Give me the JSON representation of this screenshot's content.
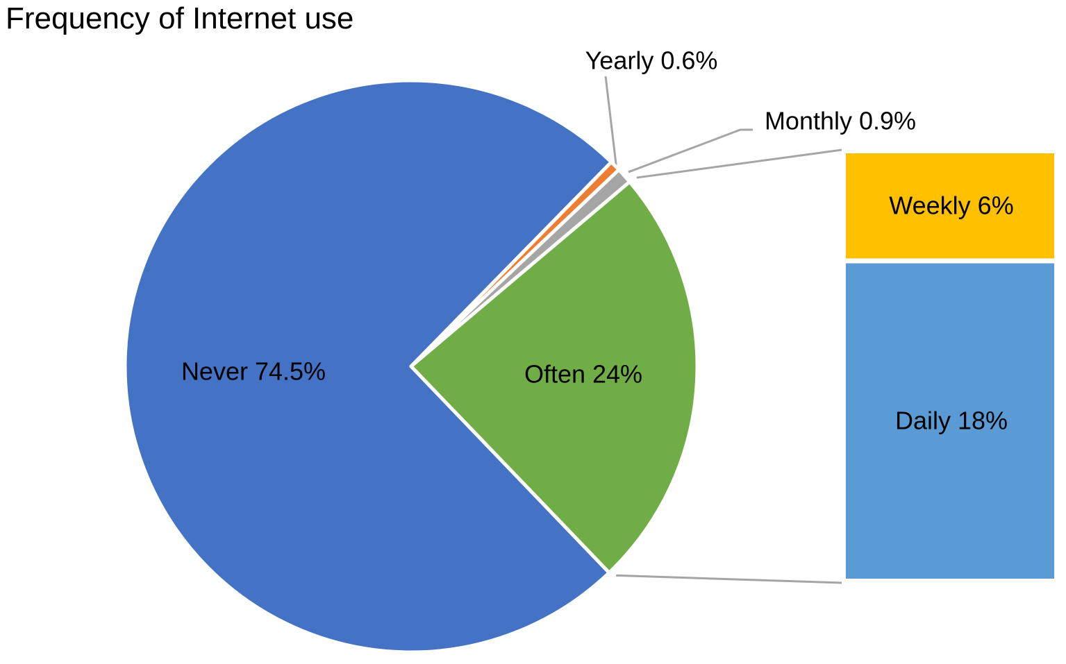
{
  "chart_data": {
    "type": "pie",
    "title": "Frequency of Internet use",
    "slices": [
      {
        "name": "Never",
        "label": "Never  74.5%",
        "value": 74.5,
        "color": "#4472C4"
      },
      {
        "name": "Yearly",
        "label": "Yearly  0.6%",
        "value": 0.6,
        "color": "#ED7D31"
      },
      {
        "name": "Monthly",
        "label": "Monthly  0.9%",
        "value": 0.9,
        "color": "#A5A5A5"
      },
      {
        "name": "Often",
        "label": "Often  24%",
        "value": 24,
        "color": "#70AD47",
        "exploded_into_bar": true
      }
    ],
    "bar_of_pie": {
      "source_slice": "Often",
      "segments": [
        {
          "name": "Weekly",
          "label": "Weekly 6%",
          "value": 6,
          "color": "#FFC000"
        },
        {
          "name": "Daily",
          "label": "Daily 18%",
          "value": 18,
          "color": "#5B9BD5"
        }
      ]
    },
    "leader_line_color": "#A5A5A5"
  }
}
